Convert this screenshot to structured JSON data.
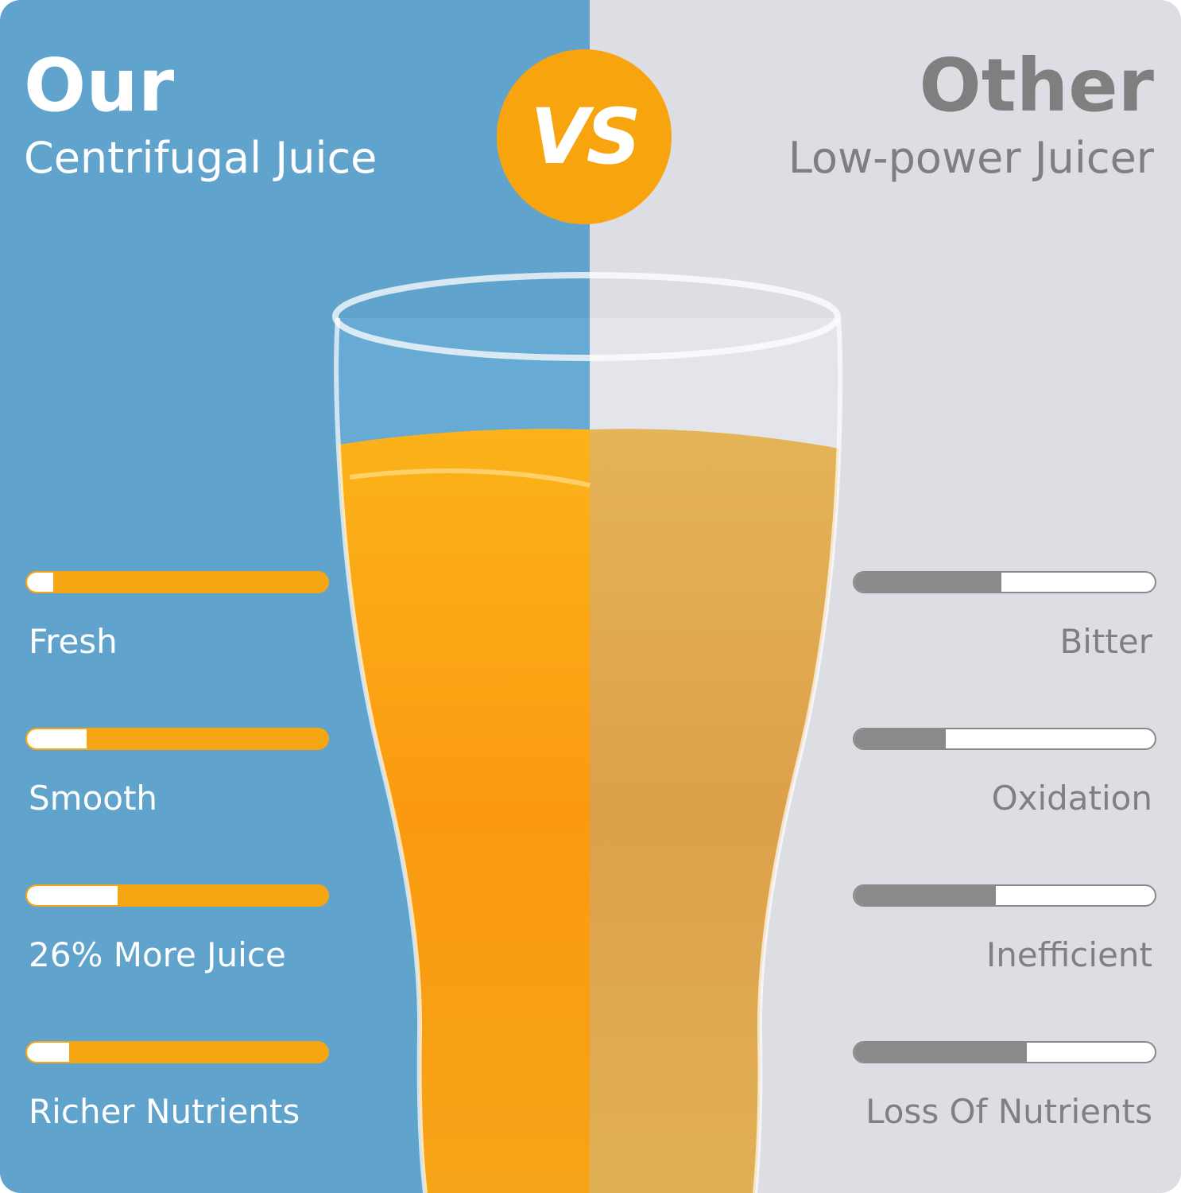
{
  "left": {
    "title": "Our",
    "subtitle": "Centrifugal Juice",
    "features": [
      "Fresh",
      "Smooth",
      "26% More Juice",
      "Richer Nutrients"
    ]
  },
  "badge": "VS",
  "right": {
    "title": "Other",
    "subtitle": "Low-power Juicer",
    "features": [
      "Bitter",
      "Oxidation",
      "Inefficient",
      "Loss Of Nutrients"
    ]
  }
}
